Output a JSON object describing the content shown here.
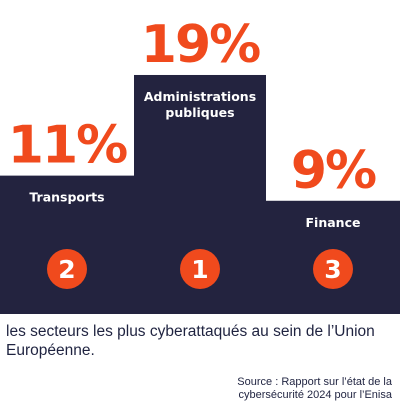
{
  "colors": {
    "navy": "#23233f",
    "orange": "#f04a1d",
    "white": "#ffffff"
  },
  "chart_data": {
    "type": "bar",
    "title": "",
    "categories": [
      "Administrations publiques",
      "Transports",
      "Finance"
    ],
    "values": [
      19,
      11,
      9
    ],
    "value_labels": [
      "19%",
      "11%",
      "9%"
    ],
    "category_lines": [
      [
        "Administrations",
        "publiques"
      ],
      [
        "Transports"
      ],
      [
        "Finance"
      ]
    ],
    "ranks": [
      "1",
      "2",
      "3"
    ],
    "unit": "%",
    "grid": false,
    "legend": "none"
  },
  "caption": "les secteurs les plus cyberattaqués au sein de l’Union Européenne.",
  "source": {
    "line1": "Source : Rapport sur l’état de la",
    "line2": "cybersécurité 2024 pour l’Enisa"
  }
}
